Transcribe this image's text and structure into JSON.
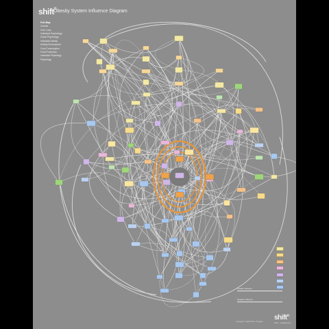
{
  "header": {
    "logo": "shift",
    "logo_mark": "n",
    "title": "Obesity System Influence Diagram"
  },
  "legend": {
    "heading": "Full Map",
    "items": [
      "Causes",
      "Core Loop",
      "Individual Psychology",
      "Social Psychology",
      "Individual Activity",
      "Activity Environment",
      "Food Consumption",
      "Food Production",
      "Individual Physiology",
      "Physiology"
    ]
  },
  "key": {
    "colors": [
      "#f3e9a5",
      "#f7dc8a",
      "#f5c38a",
      "#e8b8d8",
      "#cfb7e8",
      "#bcd2f0",
      "#a8c8ef"
    ],
    "positive_label": "Positive influence",
    "negative_label": "Negative influence"
  },
  "footer": {
    "copyright": "Copyright © 2009 Shift n. All rights",
    "logo": "shift",
    "logo_mark": "n",
    "logo_sub": "Shift n - enabling policy"
  },
  "colors": {
    "background": "#8d8d8d",
    "line": "#f0f0f0",
    "core_loop": "#e8953a"
  }
}
